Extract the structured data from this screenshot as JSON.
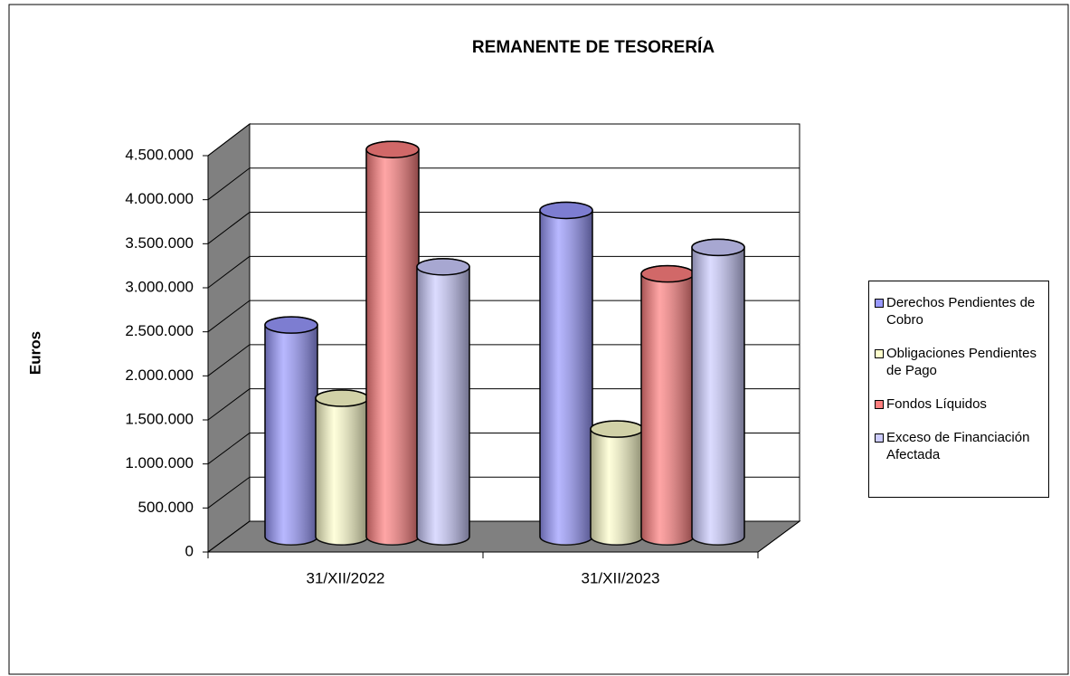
{
  "chart_data": {
    "type": "bar",
    "title": "REMANENTE DE TESORERÍA",
    "y_label": "Euros",
    "categories": [
      "31/XII/2022",
      "31/XII/2023"
    ],
    "series": [
      {
        "name": "Derechos Pendientes de Cobro",
        "color": "#9999ff",
        "values": [
          2400000,
          3700000
        ]
      },
      {
        "name": "Obligaciones Pendientes de Pago",
        "color": "#ffffcc",
        "values": [
          1570000,
          1220000
        ]
      },
      {
        "name": "Fondos Líquidos",
        "color": "#ff7f7f",
        "values": [
          4390000,
          2980000
        ]
      },
      {
        "name": "Exceso de Financiación Afectada",
        "color": "#ccccff",
        "values": [
          3060000,
          3280000
        ]
      }
    ],
    "ylim": [
      0,
      4500000
    ],
    "yticks": [
      0,
      {
        "value": 500000,
        "label": "500.000"
      },
      {
        "value": 1000000,
        "label": "1.000.000"
      },
      {
        "value": 1500000,
        "label": "1.500.000"
      },
      {
        "value": 2000000,
        "label": "2.000.000"
      },
      {
        "value": 2500000,
        "label": "2.500.000"
      },
      {
        "value": 3000000,
        "label": "3.000.000"
      },
      {
        "value": 3500000,
        "label": "3.500.000"
      },
      {
        "value": 4000000,
        "label": "4.000.000"
      },
      {
        "value": 4500000,
        "label": "4.500.000"
      }
    ],
    "grid": true,
    "legend": "right"
  }
}
